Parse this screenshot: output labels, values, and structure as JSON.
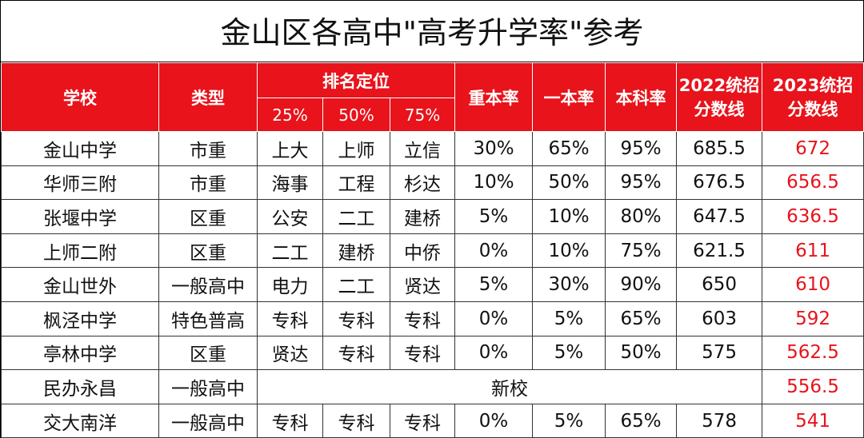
{
  "title": "金山区各高中\"高考升学率\"参考",
  "headers": {
    "school": "学校",
    "type": "类型",
    "rank_group": "排名定位",
    "p25": "25%",
    "p50": "50%",
    "p75": "75%",
    "key_rate": "重本率",
    "tier1_rate": "一本率",
    "bachelor_rate": "本科率",
    "score_2022_l1": "2022统招",
    "score_2022_l2": "分数线",
    "score_2023_l1": "2023统招",
    "score_2023_l2": "分数线"
  },
  "rows": [
    {
      "school": "金山中学",
      "type": "市重",
      "p25": "上大",
      "p50": "上师",
      "p75": "立信",
      "key_rate": "30%",
      "tier1_rate": "65%",
      "bachelor_rate": "95%",
      "score_2022": "685.5",
      "score_2023": "672"
    },
    {
      "school": "华师三附",
      "type": "市重",
      "p25": "海事",
      "p50": "工程",
      "p75": "杉达",
      "key_rate": "10%",
      "tier1_rate": "50%",
      "bachelor_rate": "95%",
      "score_2022": "676.5",
      "score_2023": "656.5"
    },
    {
      "school": "张堰中学",
      "type": "区重",
      "p25": "公安",
      "p50": "二工",
      "p75": "建桥",
      "key_rate": "5%",
      "tier1_rate": "10%",
      "bachelor_rate": "80%",
      "score_2022": "647.5",
      "score_2023": "636.5"
    },
    {
      "school": "上师二附",
      "type": "区重",
      "p25": "二工",
      "p50": "建桥",
      "p75": "中侨",
      "key_rate": "0%",
      "tier1_rate": "10%",
      "bachelor_rate": "75%",
      "score_2022": "621.5",
      "score_2023": "611"
    },
    {
      "school": "金山世外",
      "type": "一般高中",
      "p25": "电力",
      "p50": "二工",
      "p75": "贤达",
      "key_rate": "5%",
      "tier1_rate": "30%",
      "bachelor_rate": "90%",
      "score_2022": "650",
      "score_2023": "610"
    },
    {
      "school": "枫泾中学",
      "type": "特色普高",
      "p25": "专科",
      "p50": "专科",
      "p75": "专科",
      "key_rate": "0%",
      "tier1_rate": "5%",
      "bachelor_rate": "65%",
      "score_2022": "603",
      "score_2023": "592"
    },
    {
      "school": "亭林中学",
      "type": "区重",
      "p25": "贤达",
      "p50": "专科",
      "p75": "专科",
      "key_rate": "0%",
      "tier1_rate": "5%",
      "bachelor_rate": "50%",
      "score_2022": "575",
      "score_2023": "562.5"
    },
    {
      "school": "民办永昌",
      "type": "一般高中",
      "merged_note": "新校",
      "score_2023": "556.5"
    },
    {
      "school": "交大南洋",
      "type": "一般高中",
      "p25": "专科",
      "p50": "专科",
      "p75": "专科",
      "key_rate": "0%",
      "tier1_rate": "5%",
      "bachelor_rate": "65%",
      "score_2022": "578",
      "score_2023": "541"
    }
  ]
}
